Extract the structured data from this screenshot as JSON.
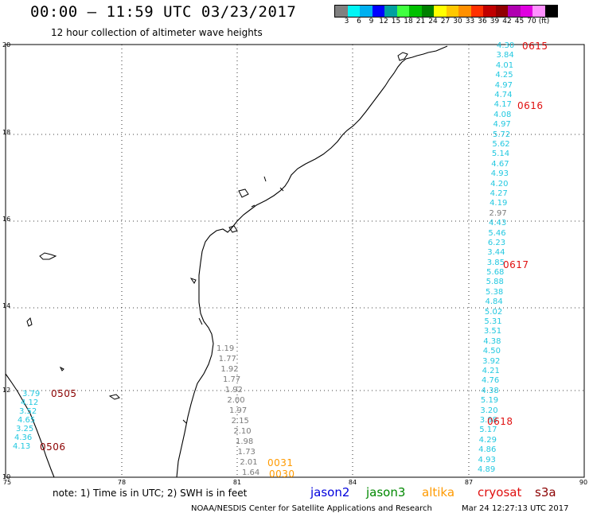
{
  "header": {
    "title": "00:00 – 11:59 UTC 03/23/2017",
    "subtitle": "12 hour collection of altimeter wave heights"
  },
  "colorbar": {
    "colors": [
      "#808080",
      "#00f5f5",
      "#00b0f0",
      "#0000ff",
      "#00a0a0",
      "#40ff40",
      "#00c000",
      "#008000",
      "#ffff00",
      "#ffc800",
      "#ff9000",
      "#ff3000",
      "#c00000",
      "#900000",
      "#b000b0",
      "#e000e0",
      "#ff90ff",
      "#000000"
    ],
    "labels": [
      "3",
      "6",
      "9",
      "12",
      "15",
      "18",
      "21",
      "24",
      "27",
      "30",
      "33",
      "36",
      "39",
      "42",
      "45",
      "70",
      "(ft)"
    ]
  },
  "axes": {
    "lat_labels": [
      "20",
      "18",
      "16",
      "14",
      "12",
      "10"
    ],
    "lon_labels": [
      "75",
      "78",
      "81",
      "84",
      "87",
      "90"
    ]
  },
  "tracks": {
    "east_cyan": [
      "4.30",
      "3.84",
      "4.01",
      "4.25",
      "4.97",
      "4.74",
      "4.17",
      "4.08",
      "4.97",
      "5.72",
      "5.62",
      "5.14",
      "4.67",
      "4.93",
      "4.20",
      "4.27",
      "4.19",
      "2.97",
      "4.43",
      "5.46",
      "6.23",
      "3.44",
      "3.85",
      "5.68",
      "5.88",
      "5.38",
      "4.84",
      "5.02",
      "5.31",
      "3.51",
      "4.38",
      "4.50",
      "3.92",
      "4.21",
      "4.76",
      "4.38",
      "5.19",
      "3.20",
      "3.98",
      "5.17",
      "4.29",
      "4.86",
      "4.93",
      "4.89"
    ],
    "coast_gray": [
      "1.19",
      "1.77",
      "1.92",
      "1.77",
      "1.92",
      "2.00",
      "1.97",
      "2.15",
      "2.10",
      "1.98",
      "1.73",
      "2.01",
      "1.64"
    ],
    "west_cyan": [
      "3.79",
      "4.12",
      "3.52",
      "4.65",
      "3.25",
      "4.36",
      "4.13"
    ],
    "passes_east": [
      "0615",
      "0616",
      "0617",
      "0618"
    ],
    "passes_west": [
      "0505",
      "0506"
    ],
    "passes_orange": [
      "0031",
      "0030"
    ]
  },
  "footer": {
    "note": "note: 1) Time is in UTC; 2) SWH is in feet",
    "satellites": [
      {
        "name": "jason2",
        "color": "#0000dd"
      },
      {
        "name": "jason3",
        "color": "#008800"
      },
      {
        "name": "altika",
        "color": "#ff9a00"
      },
      {
        "name": "cryosat",
        "color": "#e01010"
      },
      {
        "name": "s3a",
        "color": "#8b0000"
      }
    ],
    "credit": "NOAA/NESDIS Center for Satellite Applications and Research",
    "timestamp": "Mar 24 12:27:13 UTC 2017"
  }
}
